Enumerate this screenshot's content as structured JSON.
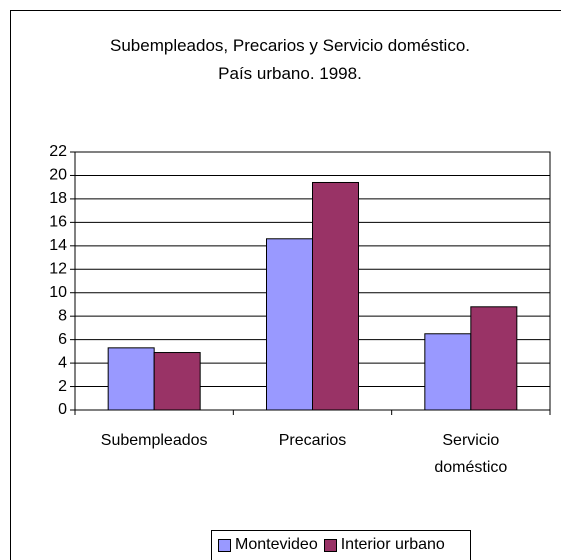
{
  "chart_data": {
    "type": "bar",
    "title": "Subempleados, Precarios y Servicio doméstico. País urbano. 1998.",
    "categories": [
      "Subempleados",
      "Precarios",
      "Servicio doméstico"
    ],
    "series": [
      {
        "name": "Montevideo",
        "color": "#9999ff",
        "values": [
          5.3,
          14.6,
          6.5
        ]
      },
      {
        "name": "Interior urbano",
        "color": "#993366",
        "values": [
          4.9,
          19.4,
          8.8
        ]
      }
    ],
    "ylim": [
      0,
      22
    ],
    "yticks": [
      0,
      2,
      4,
      6,
      8,
      10,
      12,
      14,
      16,
      18,
      20,
      22
    ],
    "grid": true,
    "legend": "bottom"
  }
}
